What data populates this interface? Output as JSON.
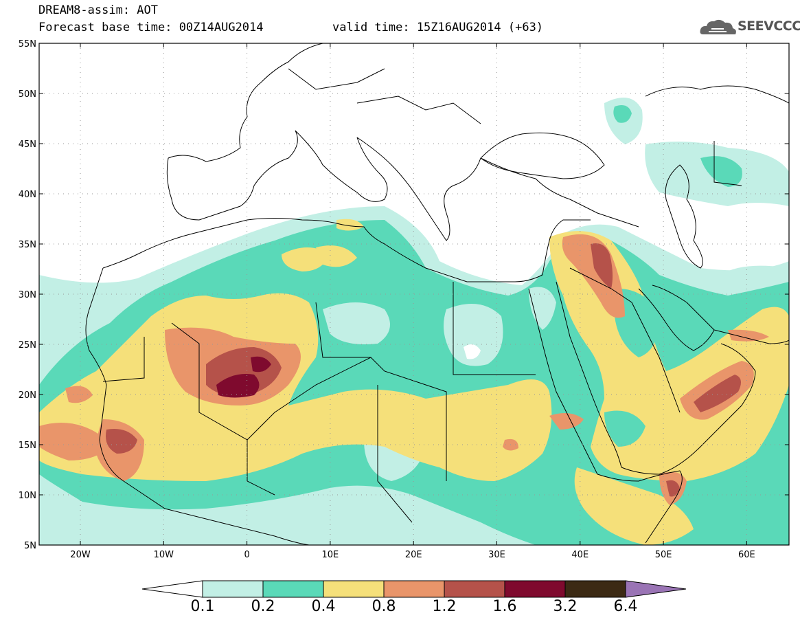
{
  "header": {
    "title": "DREAM8-assim: AOT",
    "base_time": "Forecast base time: 00Z14AUG2014",
    "valid_time": "valid time: 15Z16AUG2014 (+63)"
  },
  "logo": {
    "text": "SEEVCCC",
    "icon": "cloud-logo-icon"
  },
  "map": {
    "lat_labels": [
      "55N",
      "50N",
      "45N",
      "40N",
      "35N",
      "30N",
      "25N",
      "20N",
      "15N",
      "10N",
      "5N"
    ],
    "lon_labels": [
      "20W",
      "10W",
      "0",
      "10E",
      "20E",
      "30E",
      "40E",
      "50E",
      "60E"
    ]
  },
  "colorbar": {
    "labels": [
      "0.1",
      "0.2",
      "0.4",
      "0.8",
      "1.2",
      "1.6",
      "3.2",
      "6.4"
    ],
    "colors": [
      "#ffffff",
      "#c2efe5",
      "#5ad9b8",
      "#f5e07a",
      "#e9956a",
      "#b5524a",
      "#7f0a2e",
      "#3c2a14",
      "#9a74b5"
    ]
  }
}
